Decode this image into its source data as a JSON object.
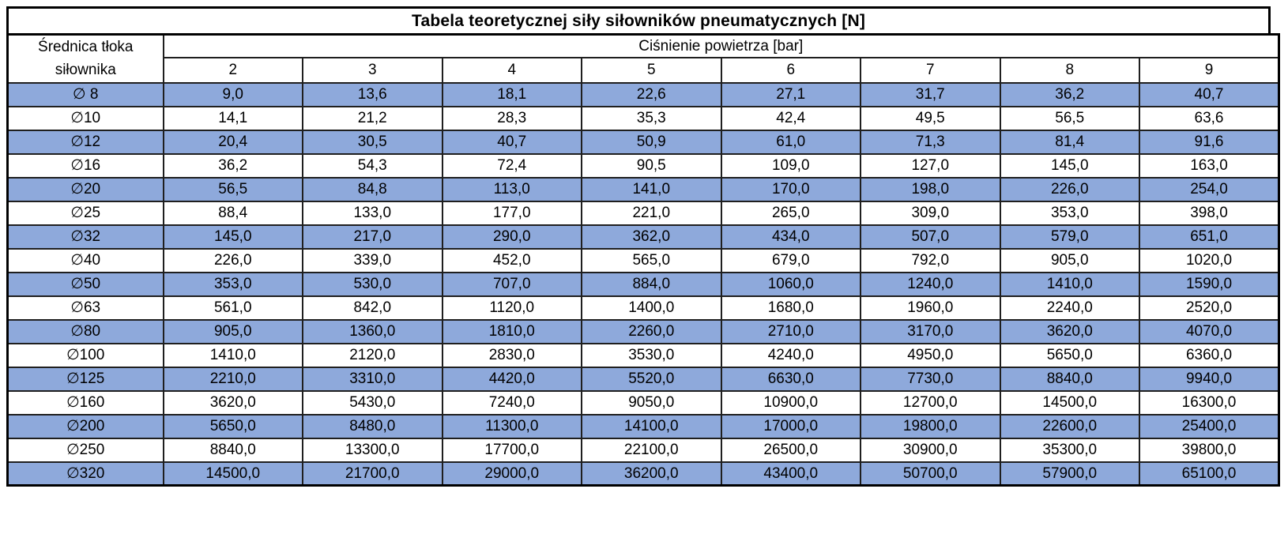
{
  "title": "Tabela teoretycznej siły siłowników pneumatycznych [N]",
  "table": {
    "diameter_header": "Średnica tłoka siłownika",
    "pressure_header": "Ciśnienie powietrza [bar]",
    "pressure_columns": [
      "2",
      "3",
      "4",
      "5",
      "6",
      "7",
      "8",
      "9"
    ],
    "rows": [
      {
        "diameter": "∅ 8",
        "highlighted": true,
        "values": [
          "9,0",
          "13,6",
          "18,1",
          "22,6",
          "27,1",
          "31,7",
          "36,2",
          "40,7"
        ]
      },
      {
        "diameter": "∅10",
        "highlighted": false,
        "values": [
          "14,1",
          "21,2",
          "28,3",
          "35,3",
          "42,4",
          "49,5",
          "56,5",
          "63,6"
        ]
      },
      {
        "diameter": "∅12",
        "highlighted": true,
        "values": [
          "20,4",
          "30,5",
          "40,7",
          "50,9",
          "61,0",
          "71,3",
          "81,4",
          "91,6"
        ]
      },
      {
        "diameter": "∅16",
        "highlighted": false,
        "values": [
          "36,2",
          "54,3",
          "72,4",
          "90,5",
          "109,0",
          "127,0",
          "145,0",
          "163,0"
        ]
      },
      {
        "diameter": "∅20",
        "highlighted": true,
        "values": [
          "56,5",
          "84,8",
          "113,0",
          "141,0",
          "170,0",
          "198,0",
          "226,0",
          "254,0"
        ]
      },
      {
        "diameter": "∅25",
        "highlighted": false,
        "values": [
          "88,4",
          "133,0",
          "177,0",
          "221,0",
          "265,0",
          "309,0",
          "353,0",
          "398,0"
        ]
      },
      {
        "diameter": "∅32",
        "highlighted": true,
        "values": [
          "145,0",
          "217,0",
          "290,0",
          "362,0",
          "434,0",
          "507,0",
          "579,0",
          "651,0"
        ]
      },
      {
        "diameter": "∅40",
        "highlighted": false,
        "values": [
          "226,0",
          "339,0",
          "452,0",
          "565,0",
          "679,0",
          "792,0",
          "905,0",
          "1020,0"
        ]
      },
      {
        "diameter": "∅50",
        "highlighted": true,
        "values": [
          "353,0",
          "530,0",
          "707,0",
          "884,0",
          "1060,0",
          "1240,0",
          "1410,0",
          "1590,0"
        ]
      },
      {
        "diameter": "∅63",
        "highlighted": false,
        "values": [
          "561,0",
          "842,0",
          "1120,0",
          "1400,0",
          "1680,0",
          "1960,0",
          "2240,0",
          "2520,0"
        ]
      },
      {
        "diameter": "∅80",
        "highlighted": true,
        "values": [
          "905,0",
          "1360,0",
          "1810,0",
          "2260,0",
          "2710,0",
          "3170,0",
          "3620,0",
          "4070,0"
        ]
      },
      {
        "diameter": "∅100",
        "highlighted": false,
        "values": [
          "1410,0",
          "2120,0",
          "2830,0",
          "3530,0",
          "4240,0",
          "4950,0",
          "5650,0",
          "6360,0"
        ]
      },
      {
        "diameter": "∅125",
        "highlighted": true,
        "values": [
          "2210,0",
          "3310,0",
          "4420,0",
          "5520,0",
          "6630,0",
          "7730,0",
          "8840,0",
          "9940,0"
        ]
      },
      {
        "diameter": "∅160",
        "highlighted": false,
        "values": [
          "3620,0",
          "5430,0",
          "7240,0",
          "9050,0",
          "10900,0",
          "12700,0",
          "14500,0",
          "16300,0"
        ]
      },
      {
        "diameter": "∅200",
        "highlighted": true,
        "values": [
          "5650,0",
          "8480,0",
          "11300,0",
          "14100,0",
          "17000,0",
          "19800,0",
          "22600,0",
          "25400,0"
        ]
      },
      {
        "diameter": "∅250",
        "highlighted": false,
        "values": [
          "8840,0",
          "13300,0",
          "17700,0",
          "22100,0",
          "26500,0",
          "30900,0",
          "35300,0",
          "39800,0"
        ]
      },
      {
        "diameter": "∅320",
        "highlighted": true,
        "values": [
          "14500,0",
          "21700,0",
          "29000,0",
          "36200,0",
          "43400,0",
          "50700,0",
          "57900,0",
          "65100,0"
        ]
      }
    ]
  },
  "colors": {
    "row_highlight": "#8EA9DB",
    "border": "#1f1f1f",
    "outer_border": "#000000",
    "text": "#000000",
    "background": "#FFFFFF"
  },
  "chart_data": {
    "type": "table",
    "title": "Tabela teoretycznej siły siłowników pneumatycznych [N]",
    "row_header_label": "Średnica tłoka siłownika",
    "column_group_label": "Ciśnienie powietrza [bar]",
    "pressures_bar": [
      2,
      3,
      4,
      5,
      6,
      7,
      8,
      9
    ],
    "rows": [
      {
        "piston_diameter_mm": 8,
        "forces_N": [
          9.0,
          13.6,
          18.1,
          22.6,
          27.1,
          31.7,
          36.2,
          40.7
        ]
      },
      {
        "piston_diameter_mm": 10,
        "forces_N": [
          14.1,
          21.2,
          28.3,
          35.3,
          42.4,
          49.5,
          56.5,
          63.6
        ]
      },
      {
        "piston_diameter_mm": 12,
        "forces_N": [
          20.4,
          30.5,
          40.7,
          50.9,
          61.0,
          71.3,
          81.4,
          91.6
        ]
      },
      {
        "piston_diameter_mm": 16,
        "forces_N": [
          36.2,
          54.3,
          72.4,
          90.5,
          109.0,
          127.0,
          145.0,
          163.0
        ]
      },
      {
        "piston_diameter_mm": 20,
        "forces_N": [
          56.5,
          84.8,
          113.0,
          141.0,
          170.0,
          198.0,
          226.0,
          254.0
        ]
      },
      {
        "piston_diameter_mm": 25,
        "forces_N": [
          88.4,
          133.0,
          177.0,
          221.0,
          265.0,
          309.0,
          353.0,
          398.0
        ]
      },
      {
        "piston_diameter_mm": 32,
        "forces_N": [
          145.0,
          217.0,
          290.0,
          362.0,
          434.0,
          507.0,
          579.0,
          651.0
        ]
      },
      {
        "piston_diameter_mm": 40,
        "forces_N": [
          226.0,
          339.0,
          452.0,
          565.0,
          679.0,
          792.0,
          905.0,
          1020.0
        ]
      },
      {
        "piston_diameter_mm": 50,
        "forces_N": [
          353.0,
          530.0,
          707.0,
          884.0,
          1060.0,
          1240.0,
          1410.0,
          1590.0
        ]
      },
      {
        "piston_diameter_mm": 63,
        "forces_N": [
          561.0,
          842.0,
          1120.0,
          1400.0,
          1680.0,
          1960.0,
          2240.0,
          2520.0
        ]
      },
      {
        "piston_diameter_mm": 80,
        "forces_N": [
          905.0,
          1360.0,
          1810.0,
          2260.0,
          2710.0,
          3170.0,
          3620.0,
          4070.0
        ]
      },
      {
        "piston_diameter_mm": 100,
        "forces_N": [
          1410.0,
          2120.0,
          2830.0,
          3530.0,
          4240.0,
          4950.0,
          5650.0,
          6360.0
        ]
      },
      {
        "piston_diameter_mm": 125,
        "forces_N": [
          2210.0,
          3310.0,
          4420.0,
          5520.0,
          6630.0,
          7730.0,
          8840.0,
          9940.0
        ]
      },
      {
        "piston_diameter_mm": 160,
        "forces_N": [
          3620.0,
          5430.0,
          7240.0,
          9050.0,
          10900.0,
          12700.0,
          14500.0,
          16300.0
        ]
      },
      {
        "piston_diameter_mm": 200,
        "forces_N": [
          5650.0,
          8480.0,
          11300.0,
          14100.0,
          17000.0,
          19800.0,
          22600.0,
          25400.0
        ]
      },
      {
        "piston_diameter_mm": 250,
        "forces_N": [
          8840.0,
          13300.0,
          17700.0,
          22100.0,
          26500.0,
          30900.0,
          35300.0,
          39800.0
        ]
      },
      {
        "piston_diameter_mm": 320,
        "forces_N": [
          14500.0,
          21700.0,
          29000.0,
          36200.0,
          43400.0,
          50700.0,
          57900.0,
          65100.0
        ]
      }
    ]
  }
}
